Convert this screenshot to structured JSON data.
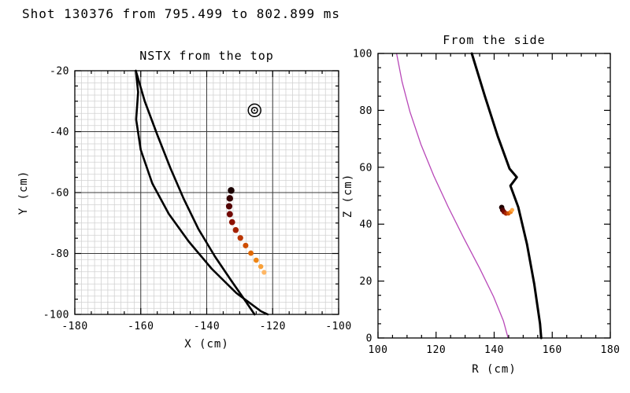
{
  "header": {
    "title": "Shot 130376 from 795.499 to 802.899 ms"
  },
  "chart_data": [
    {
      "id": "top_view",
      "type": "scatter",
      "title": "NSTX from the top",
      "xlabel": "X (cm)",
      "ylabel": "Y (cm)",
      "xlim": [
        -180,
        -100
      ],
      "ylim": [
        -100,
        -20
      ],
      "xticks": [
        -180,
        -160,
        -140,
        -120,
        -100
      ],
      "yticks": [
        -100,
        -80,
        -60,
        -40,
        -20
      ],
      "minor_tick_step": 5,
      "grid": {
        "minor_step": 2,
        "major_step": 20,
        "minor_color": "#d2d2d2",
        "major_color": "#3c3c3c"
      },
      "vessel_color": "#000000",
      "vessel_lines": [
        [
          [
            -161.5,
            -20
          ],
          [
            -160.8,
            -27
          ],
          [
            -161.4,
            -36
          ],
          [
            -160,
            -46
          ],
          [
            -156.5,
            -57
          ],
          [
            -151.5,
            -67
          ],
          [
            -145.5,
            -76
          ],
          [
            -138.5,
            -85
          ],
          [
            -131,
            -93
          ],
          [
            -123.5,
            -99
          ],
          [
            -121.5,
            -100
          ]
        ],
        [
          [
            -161.5,
            -20
          ],
          [
            -158.8,
            -30
          ],
          [
            -155,
            -41
          ],
          [
            -151,
            -52
          ],
          [
            -147,
            -62
          ],
          [
            -142.5,
            -72
          ],
          [
            -137.5,
            -81
          ],
          [
            -132.5,
            -89
          ],
          [
            -128,
            -96
          ],
          [
            -125.5,
            -100
          ]
        ]
      ],
      "sightline_marker": {
        "x": -125.5,
        "y": -33,
        "symbol": "double-circle"
      },
      "trajectory": [
        {
          "x": -132.6,
          "y": -59.3,
          "color": "#190101"
        },
        {
          "x": -133.0,
          "y": -61.9,
          "color": "#360303"
        },
        {
          "x": -133.2,
          "y": -64.5,
          "color": "#540505"
        },
        {
          "x": -133.0,
          "y": -67.1,
          "color": "#710804"
        },
        {
          "x": -132.3,
          "y": -69.7,
          "color": "#8c1202"
        },
        {
          "x": -131.2,
          "y": -72.3,
          "color": "#a42101"
        },
        {
          "x": -129.8,
          "y": -74.9,
          "color": "#ba3500"
        },
        {
          "x": -128.2,
          "y": -77.4,
          "color": "#ce4d00"
        },
        {
          "x": -126.6,
          "y": -79.9,
          "color": "#e06800"
        },
        {
          "x": -125.0,
          "y": -82.2,
          "color": "#ee8514"
        },
        {
          "x": -123.6,
          "y": -84.3,
          "color": "#f8a039"
        },
        {
          "x": -122.6,
          "y": -86.2,
          "color": "#ffb765"
        }
      ]
    },
    {
      "id": "side_view",
      "type": "scatter",
      "title": "From the side",
      "xlabel": "R (cm)",
      "ylabel": "Z (cm)",
      "xlim": [
        100,
        180
      ],
      "ylim": [
        0,
        100
      ],
      "xticks": [
        100,
        120,
        140,
        160,
        180
      ],
      "yticks": [
        0,
        20,
        40,
        60,
        80,
        100
      ],
      "minor_tick_step": 5,
      "grid": null,
      "vessel_color": "#000000",
      "vessel_lines": [
        [
          [
            132.3,
            100
          ],
          [
            136.8,
            85
          ],
          [
            141.2,
            71
          ],
          [
            145.3,
            59.5
          ],
          [
            147.8,
            56.5
          ],
          [
            145.6,
            53.5
          ],
          [
            148.3,
            46
          ],
          [
            151.3,
            33
          ],
          [
            153.8,
            19
          ],
          [
            155.8,
            5
          ],
          [
            156.2,
            0
          ]
        ]
      ],
      "flux_surface": {
        "color": "#b848b8",
        "points": [
          [
            106.4,
            100
          ],
          [
            108.3,
            90
          ],
          [
            111,
            79.5
          ],
          [
            114.8,
            68
          ],
          [
            119.2,
            57
          ],
          [
            124.2,
            46
          ],
          [
            129.6,
            35
          ],
          [
            135,
            24.5
          ],
          [
            139.8,
            14.5
          ],
          [
            143.2,
            6
          ],
          [
            144.8,
            0
          ]
        ]
      },
      "trajectory": [
        {
          "x": 142.6,
          "y": 45.9,
          "color": "#1c0101"
        },
        {
          "x": 142.9,
          "y": 45.0,
          "color": "#4a0404"
        },
        {
          "x": 143.4,
          "y": 44.3,
          "color": "#790b02"
        },
        {
          "x": 144.1,
          "y": 43.8,
          "color": "#a42300"
        },
        {
          "x": 144.9,
          "y": 43.8,
          "color": "#cf4e00"
        },
        {
          "x": 145.7,
          "y": 44.3,
          "color": "#ef7f17"
        },
        {
          "x": 146.2,
          "y": 45.0,
          "color": "#ffa845"
        }
      ]
    }
  ]
}
